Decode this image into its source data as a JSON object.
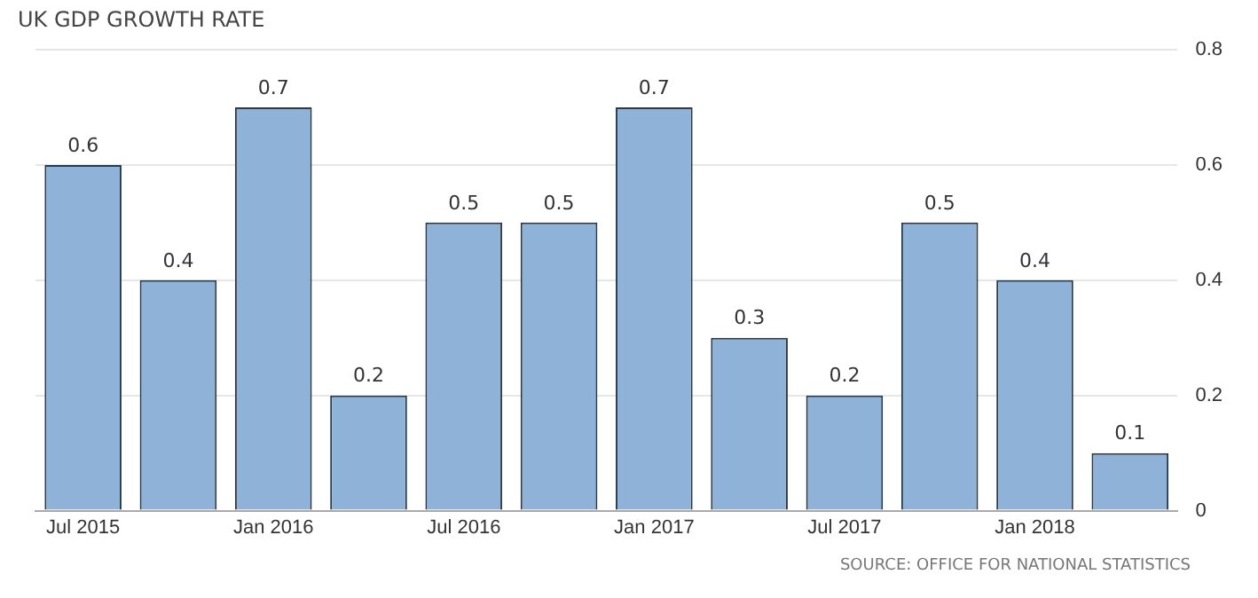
{
  "chart_data": {
    "type": "bar",
    "title": "UK GDP GROWTH RATE",
    "categories": [
      "Jul 2015",
      null,
      "Jan 2016",
      null,
      "Jul 2016",
      null,
      "Jan 2017",
      null,
      "Jul 2017",
      null,
      "Jan 2018",
      null
    ],
    "values": [
      0.6,
      0.4,
      0.7,
      0.2,
      0.5,
      0.5,
      0.7,
      0.3,
      0.2,
      0.5,
      0.4,
      0.1
    ],
    "color": "#8fb3d8",
    "ylim": [
      0,
      0.8
    ],
    "yticks": [
      0,
      0.2,
      0.4,
      0.6,
      0.8
    ],
    "grid": "y",
    "data_labels": true,
    "annotations": [
      "SOURCE: OFFICE FOR NATIONAL STATISTICS"
    ]
  }
}
